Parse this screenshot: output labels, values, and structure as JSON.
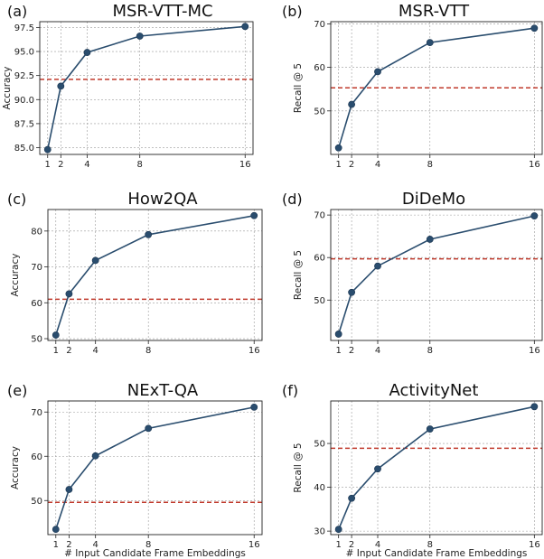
{
  "colors": {
    "series": "#2a4d6e",
    "reference": "#c0392b"
  },
  "chart_data": [
    {
      "panel_tag": "(a)",
      "type": "line",
      "title": "MSR-VTT-MC",
      "xlabel": "",
      "ylabel": "Accuracy",
      "x": [
        1,
        2,
        4,
        8,
        16
      ],
      "values": [
        84.8,
        91.4,
        94.9,
        96.6,
        97.6
      ],
      "reference": 92.1,
      "xlim": [
        0.4,
        16.6
      ],
      "ylim": [
        84.3,
        98.1
      ],
      "xticks": [
        "1",
        "2",
        "4",
        "8",
        "16"
      ],
      "yticks": [
        "85.0",
        "87.5",
        "90.0",
        "92.5",
        "95.0",
        "97.5"
      ],
      "ytick_values": [
        85,
        87.5,
        90,
        92.5,
        95,
        97.5
      ],
      "grid": true
    },
    {
      "panel_tag": "(b)",
      "type": "line",
      "title": "MSR-VTT",
      "xlabel": "",
      "ylabel": "Recall @ 5",
      "x": [
        1,
        2,
        4,
        8,
        16
      ],
      "values": [
        41.5,
        51.5,
        59,
        65.7,
        69
      ],
      "reference": 55.3,
      "xlim": [
        0.4,
        16.6
      ],
      "ylim": [
        40,
        70.5
      ],
      "xticks": [
        "1",
        "2",
        "4",
        "8",
        "16"
      ],
      "yticks": [
        "50",
        "60",
        "70"
      ],
      "ytick_values": [
        50,
        60,
        70
      ],
      "grid": true
    },
    {
      "panel_tag": "(c)",
      "type": "line",
      "title": "How2QA",
      "xlabel": "",
      "ylabel": "Accuracy",
      "x": [
        1,
        2,
        4,
        8,
        16
      ],
      "values": [
        51,
        62.5,
        71.8,
        79,
        84.3
      ],
      "reference": 61,
      "xlim": [
        0.4,
        16.6
      ],
      "ylim": [
        49.5,
        86
      ],
      "xticks": [
        "1",
        "2",
        "4",
        "8",
        "16"
      ],
      "yticks": [
        "50",
        "60",
        "70",
        "80"
      ],
      "ytick_values": [
        50,
        60,
        70,
        80
      ],
      "grid": true
    },
    {
      "panel_tag": "(d)",
      "type": "line",
      "title": "DiDeMo",
      "xlabel": "",
      "ylabel": "Recall @ 5",
      "x": [
        1,
        2,
        4,
        8,
        16
      ],
      "values": [
        42,
        51.8,
        58,
        64.3,
        69.8
      ],
      "reference": 59.7,
      "xlim": [
        0.4,
        16.6
      ],
      "ylim": [
        40.5,
        71.3
      ],
      "xticks": [
        "1",
        "2",
        "4",
        "8",
        "16"
      ],
      "yticks": [
        "50",
        "60",
        "70"
      ],
      "ytick_values": [
        50,
        60,
        70
      ],
      "grid": true
    },
    {
      "panel_tag": "(e)",
      "type": "line",
      "title": "NExT-QA",
      "xlabel": "# Input Candidate Frame Embeddings",
      "ylabel": "Accuracy",
      "x": [
        1,
        2,
        4,
        8,
        16
      ],
      "values": [
        43.5,
        52.5,
        60.1,
        66.3,
        71.1
      ],
      "reference": 49.6,
      "xlim": [
        0.4,
        16.6
      ],
      "ylim": [
        42.3,
        72.5
      ],
      "xticks": [
        "1",
        "2",
        "4",
        "8",
        "16"
      ],
      "yticks": [
        "50",
        "60",
        "70"
      ],
      "ytick_values": [
        50,
        60,
        70
      ],
      "grid": true
    },
    {
      "panel_tag": "(f)",
      "type": "line",
      "title": "ActivityNet",
      "xlabel": "# Input Candidate Frame Embeddings",
      "ylabel": "Recall @ 5",
      "x": [
        1,
        2,
        4,
        8,
        16
      ],
      "values": [
        30.4,
        37.5,
        44.2,
        53.3,
        58.4
      ],
      "reference": 48.9,
      "xlim": [
        0.4,
        16.6
      ],
      "ylim": [
        29.2,
        59.7
      ],
      "xticks": [
        "1",
        "2",
        "4",
        "8",
        "16"
      ],
      "yticks": [
        "30",
        "40",
        "50"
      ],
      "ytick_values": [
        30,
        40,
        50
      ],
      "grid": true
    }
  ]
}
